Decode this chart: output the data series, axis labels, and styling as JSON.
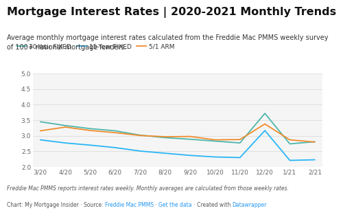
{
  "title": "Mortgage Interest Rates | 2020-2021 Monthly Trends",
  "subtitle": "Average monthly mortgage interest rates calculated from the Freddie Mac PMMS weekly survey\nof 100+ national mortgage lenders.",
  "footer_italic": "Freddie Mac PMMS reports interest rates weekly. Monthly averages are calculated from those weekly rates.",
  "footer_plain": "Chart: My Mortgage Insider · Source: ",
  "footer_link1": "Freddie Mac PMMS",
  "footer_mid": " · ",
  "footer_link2": "Get the data",
  "footer_end": " · Created with ",
  "footer_link3": "Datawrapper",
  "x_labels": [
    "3/20",
    "4/20",
    "5/20",
    "6/20",
    "7/20",
    "8/20",
    "9/20",
    "10/20",
    "11/20",
    "12/20",
    "1/21",
    "2/21"
  ],
  "y30": [
    3.45,
    3.33,
    3.23,
    3.16,
    3.02,
    2.94,
    2.89,
    2.83,
    2.77,
    3.72,
    2.74,
    2.81
  ],
  "y15": [
    2.87,
    2.77,
    2.7,
    2.62,
    2.51,
    2.44,
    2.37,
    2.32,
    2.3,
    3.17,
    2.21,
    2.23
  ],
  "y51": [
    3.16,
    3.28,
    3.17,
    3.1,
    3.01,
    2.97,
    2.98,
    2.87,
    2.88,
    3.38,
    2.87,
    2.8
  ],
  "color_30": "#4db6ac",
  "color_15": "#29b6f6",
  "color_51": "#ef8c2c",
  "ylim": [
    2.0,
    5.0
  ],
  "yticks": [
    2,
    2.5,
    3,
    3.5,
    4,
    4.5,
    5
  ],
  "bg_color": "#ffffff",
  "plot_bg": "#f5f5f5",
  "grid_color": "#dddddd",
  "title_fontsize": 11.5,
  "subtitle_fontsize": 7.0,
  "legend_fontsize": 6.5,
  "tick_fontsize": 6.5,
  "footer_fontsize": 5.5
}
